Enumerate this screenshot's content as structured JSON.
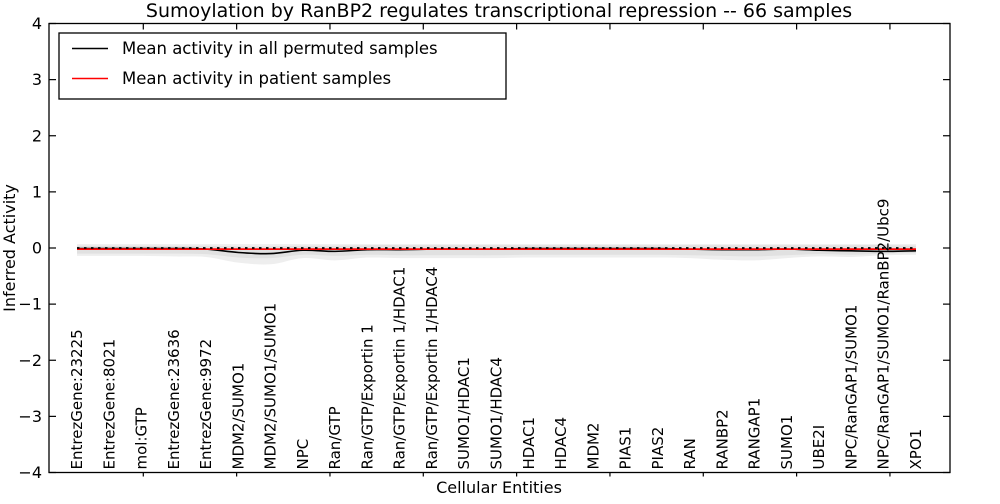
{
  "chart_data": {
    "type": "line",
    "title": "Sumoylation by RanBP2 regulates transcriptional repression -- 66 samples",
    "xlabel": "Cellular Entities",
    "ylabel": "Inferred Activity",
    "ylim": [
      -4,
      4
    ],
    "yticks": [
      4,
      3,
      2,
      1,
      0,
      -1,
      -2,
      -3,
      -4
    ],
    "grid": false,
    "legend": {
      "position": "upper-left",
      "entries": [
        {
          "label": "Mean activity in all permuted samples",
          "color": "#000000"
        },
        {
          "label": "Mean activity in patient samples",
          "color": "#ff0000"
        }
      ]
    },
    "categories": [
      "EntrezGene:23225",
      "EntrezGene:8021",
      "mol:GTP",
      "EntrezGene:23636",
      "EntrezGene:9972",
      "MDM2/SUMO1",
      "MDM2/SUMO1/SUMO1",
      "NPC",
      "Ran/GTP",
      "Ran/GTP/Exportin 1",
      "Ran/GTP/Exportin 1/HDAC1",
      "Ran/GTP/Exportin 1/HDAC4",
      "SUMO1/HDAC1",
      "SUMO1/HDAC4",
      "HDAC1",
      "HDAC4",
      "MDM2",
      "PIAS1",
      "PIAS2",
      "RAN",
      "RANBP2",
      "RANGAP1",
      "SUMO1",
      "UBE2I",
      "NPC/RanGAP1/SUMO1",
      "NPC/RanGAP1/SUMO1/RanBP2/Ubc9",
      "XPO1"
    ],
    "series": [
      {
        "name": "Mean activity in all permuted samples",
        "color": "#000000",
        "values": [
          -0.01,
          -0.01,
          -0.01,
          -0.01,
          -0.02,
          -0.08,
          -0.1,
          -0.04,
          -0.06,
          -0.03,
          -0.03,
          -0.02,
          -0.02,
          -0.02,
          -0.01,
          -0.01,
          -0.01,
          -0.01,
          -0.01,
          -0.02,
          -0.03,
          -0.03,
          -0.02,
          -0.04,
          -0.05,
          -0.06,
          -0.05
        ]
      },
      {
        "name": "Mean activity in patient samples",
        "color": "#ff0000",
        "values": [
          -0.02,
          -0.02,
          -0.02,
          -0.02,
          -0.02,
          -0.02,
          -0.02,
          -0.02,
          -0.02,
          -0.02,
          -0.02,
          -0.02,
          -0.02,
          -0.02,
          -0.02,
          -0.02,
          -0.02,
          -0.02,
          -0.02,
          -0.02,
          -0.02,
          -0.02,
          -0.02,
          -0.02,
          -0.02,
          -0.02,
          -0.02
        ]
      }
    ],
    "bands": [
      {
        "name": "permutation-spread-outer",
        "color": "#eeeeee",
        "upper": [
          0.07,
          0.07,
          0.07,
          0.07,
          0.07,
          0.07,
          0.07,
          0.07,
          0.07,
          0.07,
          0.07,
          0.07,
          0.07,
          0.07,
          0.07,
          0.07,
          0.07,
          0.07,
          0.07,
          0.07,
          0.07,
          0.07,
          0.07,
          0.07,
          0.07,
          0.07,
          0.07
        ],
        "lower": [
          -0.14,
          -0.14,
          -0.14,
          -0.15,
          -0.16,
          -0.26,
          -0.29,
          -0.18,
          -0.22,
          -0.17,
          -0.18,
          -0.18,
          -0.18,
          -0.18,
          -0.17,
          -0.17,
          -0.17,
          -0.17,
          -0.17,
          -0.18,
          -0.21,
          -0.22,
          -0.18,
          -0.15,
          -0.16,
          -0.13,
          -0.12
        ]
      },
      {
        "name": "permutation-spread-inner",
        "color": "#e1e1e1",
        "upper": [
          0.04,
          0.04,
          0.04,
          0.04,
          0.04,
          0.03,
          0.03,
          0.04,
          0.04,
          0.05,
          0.05,
          0.05,
          0.05,
          0.05,
          0.05,
          0.05,
          0.05,
          0.05,
          0.05,
          0.05,
          0.05,
          0.05,
          0.05,
          0.05,
          0.05,
          0.05,
          0.04
        ],
        "lower": [
          -0.1,
          -0.1,
          -0.1,
          -0.1,
          -0.11,
          -0.17,
          -0.18,
          -0.12,
          -0.14,
          -0.12,
          -0.13,
          -0.13,
          -0.13,
          -0.13,
          -0.12,
          -0.12,
          -0.12,
          -0.12,
          -0.12,
          -0.13,
          -0.14,
          -0.15,
          -0.13,
          -0.11,
          -0.12,
          -0.1,
          -0.09
        ]
      }
    ],
    "zero_line": {
      "y": 0,
      "style": "dotted",
      "color": "#000000"
    }
  }
}
